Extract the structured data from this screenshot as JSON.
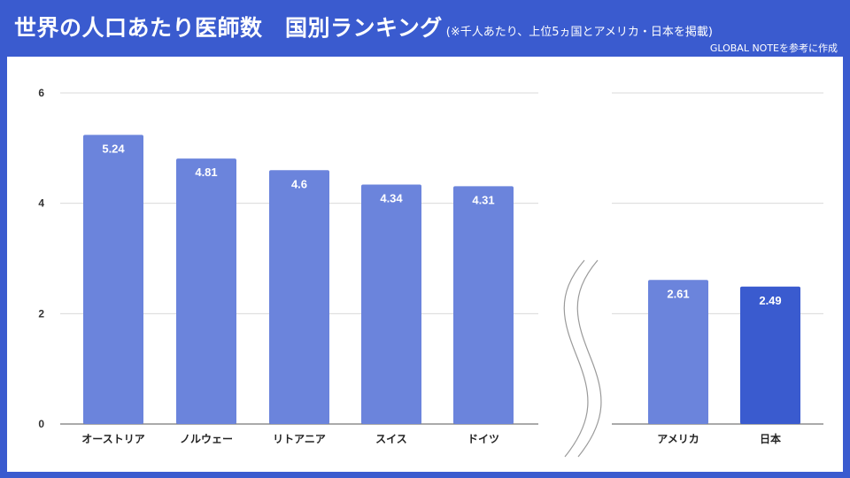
{
  "header": {
    "title": "世界の人口あたり医師数　国別ランキング",
    "subtitle": "(※千人あたり、上位5ヵ国とアメリカ・日本を掲載)",
    "source": "GLOBAL NOTEを参考に作成"
  },
  "colors": {
    "frame": "#3a5bcf",
    "bar": "#6b84dc",
    "bar_highlight": "#3a5bcf",
    "grid": "#d9d9d9"
  },
  "chart_data": {
    "type": "bar",
    "title": "世界の人口あたり医師数　国別ランキング",
    "xlabel": "",
    "ylabel": "",
    "ylim": [
      0,
      6
    ],
    "yticks": [
      0,
      2,
      4,
      6
    ],
    "grid": true,
    "axis_break": "between ドイツ and アメリカ",
    "categories": [
      "オーストリア",
      "ノルウェー",
      "リトアニア",
      "スイス",
      "ドイツ",
      "アメリカ",
      "日本"
    ],
    "values": [
      5.24,
      4.81,
      4.6,
      4.34,
      4.31,
      2.61,
      2.49
    ],
    "data_labels": [
      "5.24",
      "4.81",
      "4.6",
      "4.34",
      "4.31",
      "2.61",
      "2.49"
    ],
    "highlight": "日本"
  }
}
